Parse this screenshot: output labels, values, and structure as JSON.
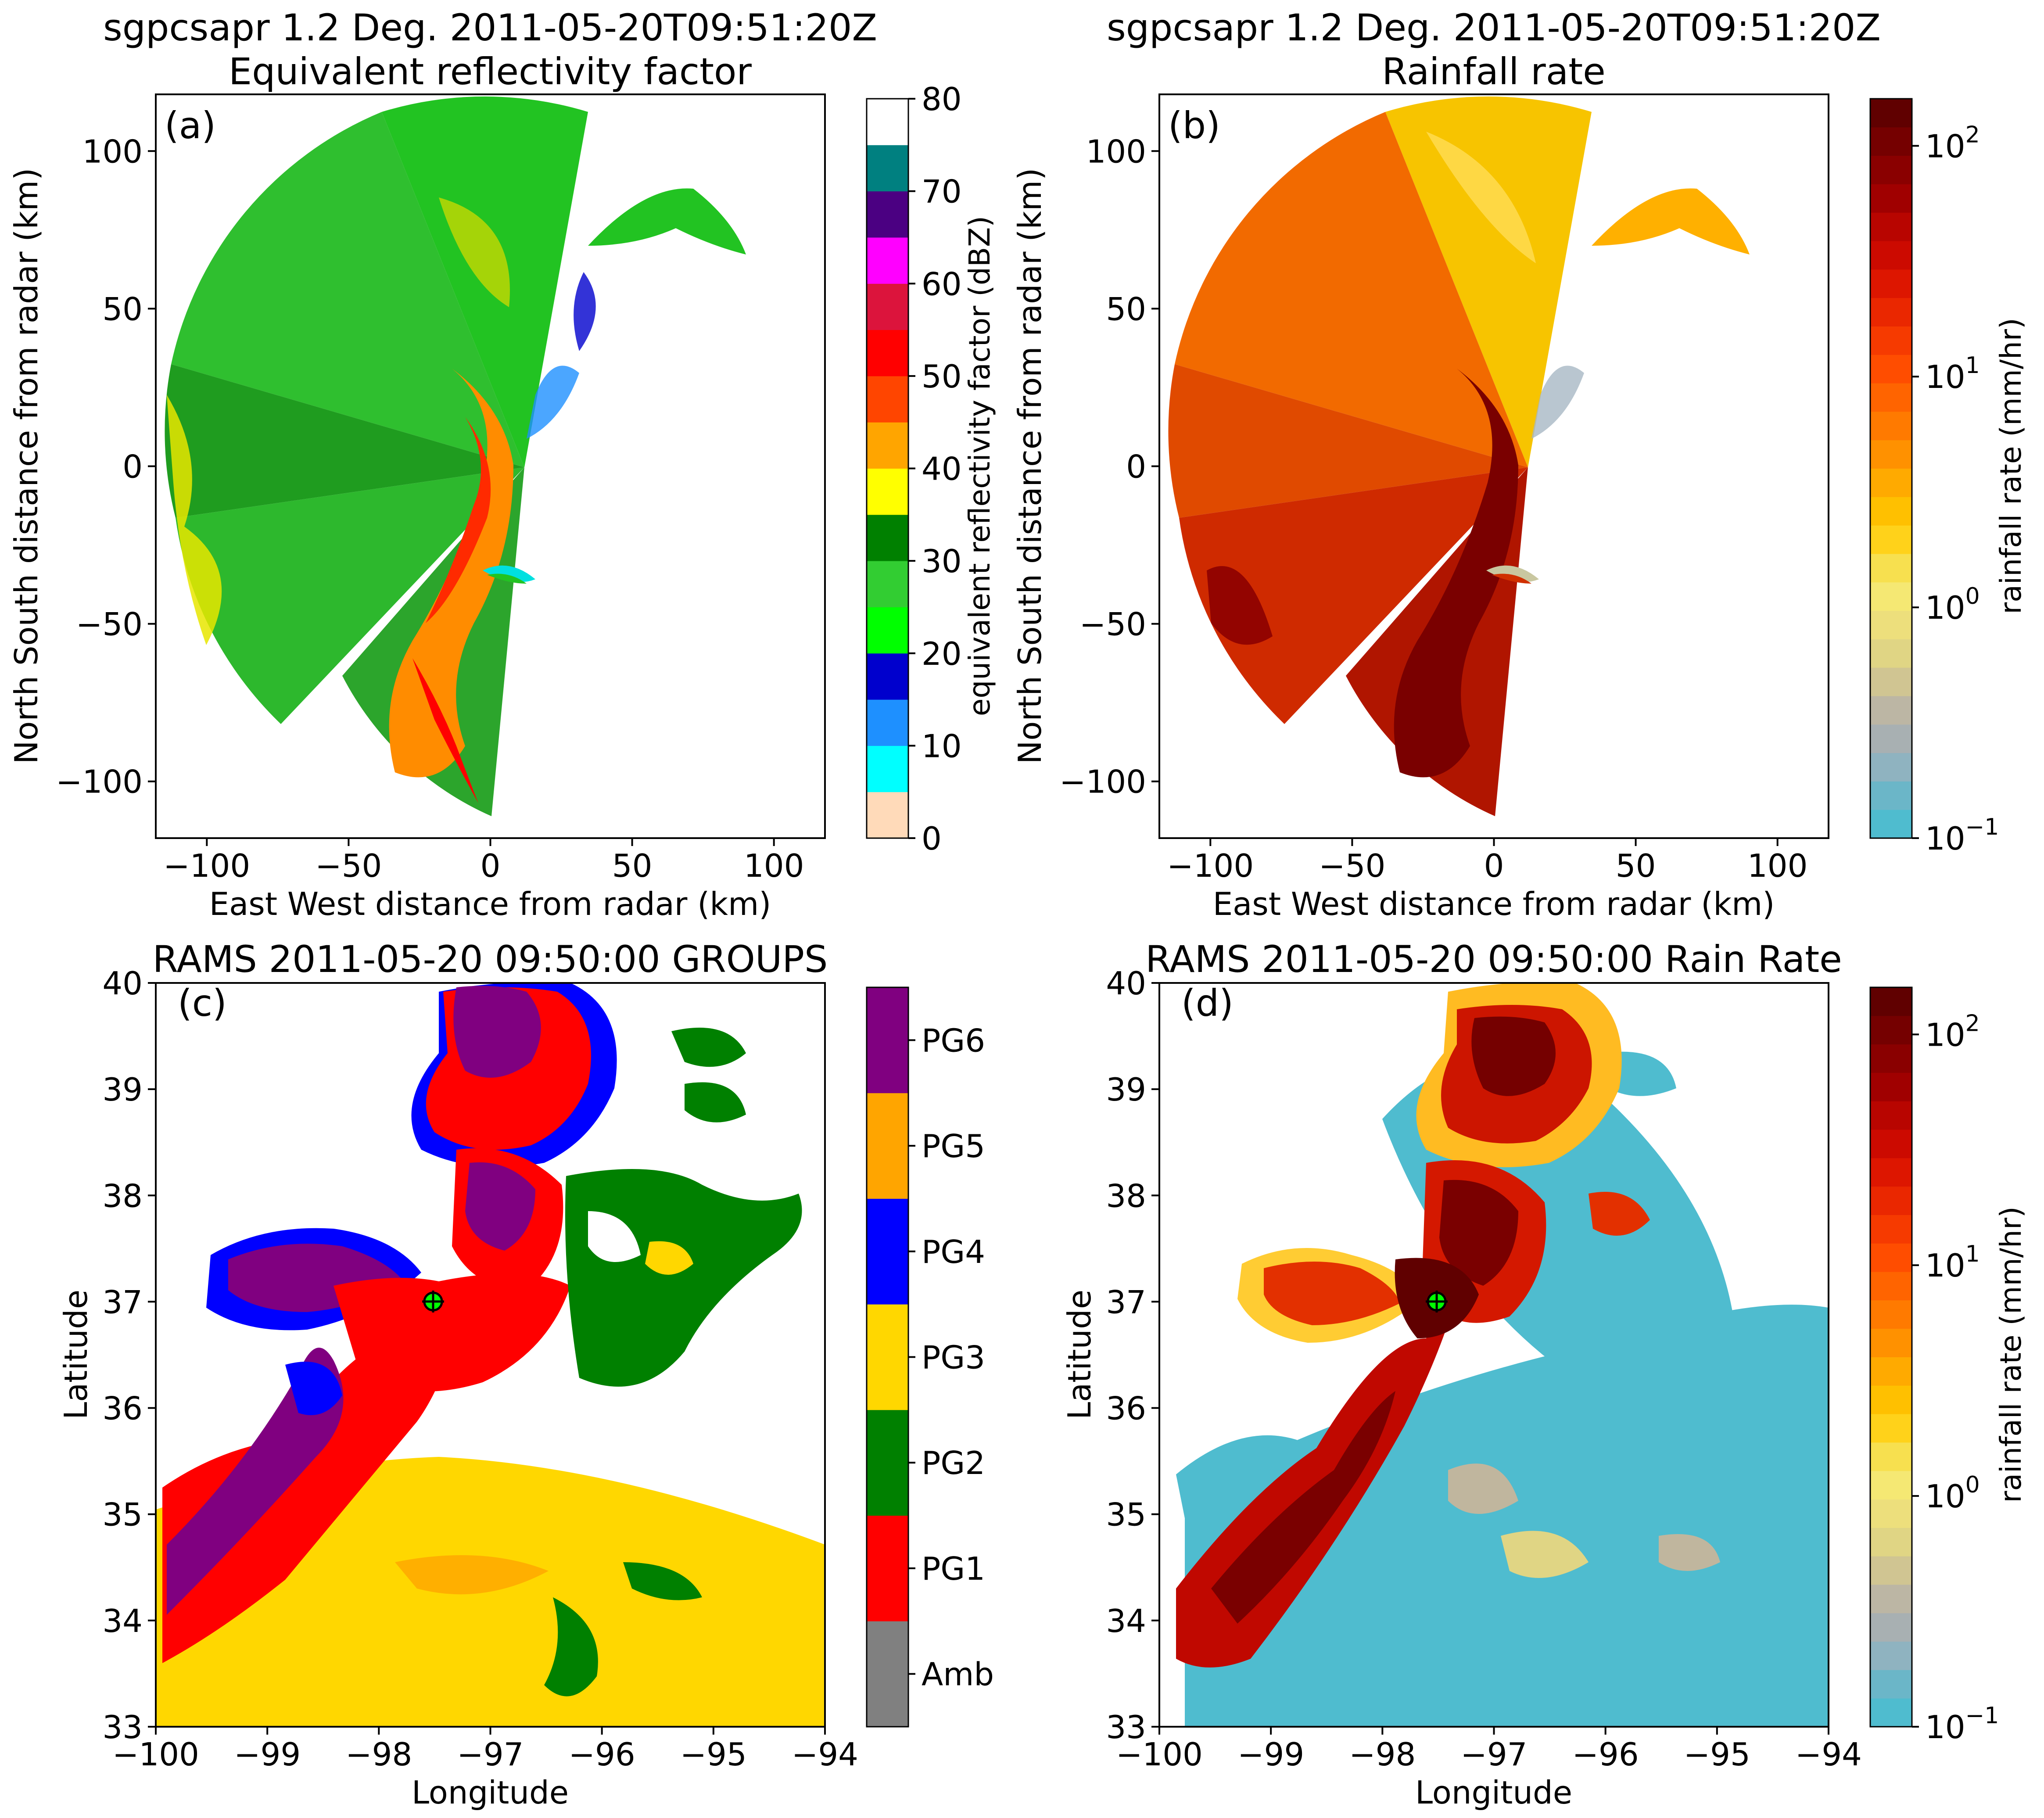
{
  "chart_data": [
    {
      "panel": "(a)",
      "type": "heatmap",
      "title": [
        "sgpcsapr 1.2 Deg. 2011-05-20T09:51:20Z",
        "Equivalent reflectivity factor"
      ],
      "xlabel": "East West distance from radar (km)",
      "ylabel": "North South distance from radar (km)",
      "xlim": [
        -118,
        118
      ],
      "ylim": [
        -118,
        118
      ],
      "xticks": [
        -100,
        -50,
        0,
        50,
        100
      ],
      "yticks": [
        -100,
        -50,
        0,
        50,
        100
      ],
      "xtick_labels": [
        "−100",
        "−50",
        "0",
        "50",
        "100"
      ],
      "ytick_labels": [
        "−100",
        "−50",
        "0",
        "50",
        "100"
      ],
      "colorbar": {
        "label": "equivalent reflectivity factor (dBZ)",
        "scale": "discrete",
        "range": [
          0,
          80
        ],
        "ticks": [
          0,
          10,
          20,
          30,
          40,
          50,
          60,
          70,
          80
        ],
        "tick_labels": [
          "0",
          "10",
          "20",
          "30",
          "40",
          "50",
          "60",
          "70",
          "80"
        ],
        "colors": [
          "#ffdab9",
          "#00ffff",
          "#1e90ff",
          "#0000cd",
          "#00ff00",
          "#32cd32",
          "#008000",
          "#ffff00",
          "#ffa500",
          "#ff4500",
          "#ff0000",
          "#dc143c",
          "#ff00ff",
          "#4b0082",
          "#008080",
          "#ffffff"
        ]
      }
    },
    {
      "panel": "(b)",
      "type": "heatmap",
      "title": [
        "sgpcsapr 1.2 Deg. 2011-05-20T09:51:20Z",
        "Rainfall rate"
      ],
      "xlabel": "East West distance from radar (km)",
      "ylabel": "North South distance from radar (km)",
      "xlim": [
        -118,
        118
      ],
      "ylim": [
        -118,
        118
      ],
      "xticks": [
        -100,
        -50,
        0,
        50,
        100
      ],
      "yticks": [
        -100,
        -50,
        0,
        50,
        100
      ],
      "xtick_labels": [
        "−100",
        "−50",
        "0",
        "50",
        "100"
      ],
      "ytick_labels": [
        "−100",
        "−50",
        "0",
        "50",
        "100"
      ],
      "colorbar": {
        "label": "rainfall rate (mm/hr)",
        "scale": "log",
        "range": [
          0.1,
          160
        ],
        "ticks": [
          0.1,
          1,
          10,
          100
        ],
        "tick_labels": [
          [
            "10",
            "−1"
          ],
          [
            "10",
            "0"
          ],
          [
            "10",
            "1"
          ],
          [
            "10",
            "2"
          ]
        ]
      }
    },
    {
      "panel": "(c)",
      "type": "heatmap",
      "title": "RAMS 2011-05-20 09:50:00 GROUPS",
      "xlabel": "Longitude",
      "ylabel": "Latitude",
      "xlim": [
        -100,
        -94
      ],
      "ylim": [
        33,
        40
      ],
      "xticks": [
        -100,
        -99,
        -98,
        -97,
        -96,
        -95,
        -94
      ],
      "yticks": [
        33,
        34,
        35,
        36,
        37,
        38,
        39,
        40
      ],
      "xtick_labels": [
        "−100",
        "−99",
        "−98",
        "−97",
        "−96",
        "−95",
        "−94"
      ],
      "ytick_labels": [
        "33",
        "34",
        "35",
        "36",
        "37",
        "38",
        "39",
        "40"
      ],
      "radar_location": [
        -97.5,
        36.6
      ],
      "colorbar": {
        "scale": "categorical",
        "categories": [
          "Amb",
          "PG1",
          "PG2",
          "PG3",
          "PG4",
          "PG5",
          "PG6"
        ],
        "colors": [
          "#808080",
          "#ff0000",
          "#008000",
          "#ffd700",
          "#0000ff",
          "#ffa500",
          "#800080"
        ]
      }
    },
    {
      "panel": "(d)",
      "type": "heatmap",
      "title": "RAMS 2011-05-20 09:50:00 Rain Rate",
      "xlabel": "Longitude",
      "ylabel": "Latitude",
      "xlim": [
        -100,
        -94
      ],
      "ylim": [
        33,
        40
      ],
      "xticks": [
        -100,
        -99,
        -98,
        -97,
        -96,
        -95,
        -94
      ],
      "yticks": [
        33,
        34,
        35,
        36,
        37,
        38,
        39,
        40
      ],
      "xtick_labels": [
        "−100",
        "−99",
        "−98",
        "−97",
        "−96",
        "−95",
        "−94"
      ],
      "ytick_labels": [
        "33",
        "34",
        "35",
        "36",
        "37",
        "38",
        "39",
        "40"
      ],
      "radar_location": [
        -97.5,
        36.6
      ],
      "colorbar": {
        "label": "rainfall rate (mm/hr)",
        "scale": "log",
        "range": [
          0.1,
          160
        ],
        "ticks": [
          0.1,
          1,
          10,
          100
        ],
        "tick_labels": [
          [
            "10",
            "−1"
          ],
          [
            "10",
            "0"
          ],
          [
            "10",
            "1"
          ],
          [
            "10",
            "2"
          ]
        ]
      }
    }
  ],
  "rain_colors": [
    "#4fbccf",
    "#6bb6c8",
    "#8fb3c0",
    "#a8b0b2",
    "#bcb6a4",
    "#d0c592",
    "#e0d584",
    "#eddf7c",
    "#f5e873",
    "#f7e04f",
    "#ffd21a",
    "#ffc000",
    "#ffaa00",
    "#ff9100",
    "#ff7a00",
    "#ff6400",
    "#ff4d00",
    "#f63a00",
    "#ea2700",
    "#dd1600",
    "#cc0a00",
    "#b80500",
    "#a00000",
    "#8a0000",
    "#750000",
    "#600000"
  ]
}
